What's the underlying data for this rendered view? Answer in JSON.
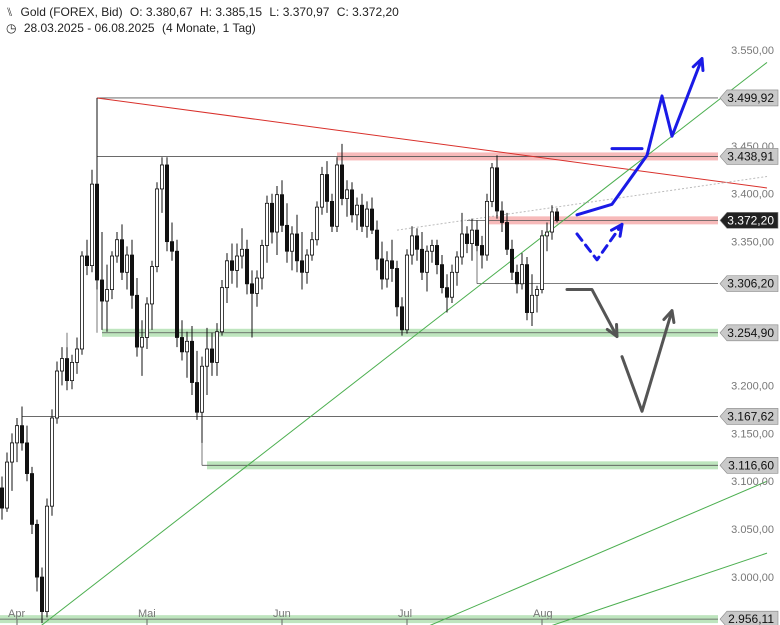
{
  "header": {
    "instrument": "Gold (FOREX, Bid)",
    "open": "O: 3.380,67",
    "high": "H: 3.385,15",
    "low": "L: 3.370,97",
    "close": "C: 3.372,20",
    "date_range": "28.03.2025 - 06.08.2025",
    "period": "(4 Monate, 1 Tag)"
  },
  "chart_data": {
    "type": "candlestick",
    "ylim": [
      2950,
      3575
    ],
    "grid": false,
    "y_ticks": [
      {
        "value": 3550,
        "label": "3.550,00"
      },
      {
        "value": 3450,
        "label": "3.450,00"
      },
      {
        "value": 3400,
        "label": "3.400,00"
      },
      {
        "value": 3350,
        "label": "3.350,00"
      },
      {
        "value": 3200,
        "label": "3.200,00"
      },
      {
        "value": 3150,
        "label": "3.150,00"
      },
      {
        "value": 3100,
        "label": "3.100,00"
      },
      {
        "value": 3050,
        "label": "3.050,00"
      },
      {
        "value": 3000,
        "label": "3.000,00"
      }
    ],
    "x_ticks": [
      {
        "index": 2,
        "label": "Apr"
      },
      {
        "index": 28,
        "label": "Mai"
      },
      {
        "index": 55,
        "label": "Jun"
      },
      {
        "index": 80,
        "label": "Jul"
      },
      {
        "index": 107,
        "label": "Aug"
      }
    ],
    "levels": [
      {
        "value": 3499.92,
        "label": "3.499,92",
        "from_index": 19,
        "color": "#555555",
        "zone": false
      },
      {
        "value": 3438.91,
        "label": "3.438,91",
        "from_index": 19,
        "color": "#555555",
        "zone": true,
        "zone_color": "#f4a3a3",
        "zone_from_index": 67
      },
      {
        "value": 3372.2,
        "label": "3.372,20",
        "from_index": 93,
        "color": "#555555",
        "zone": true,
        "zone_color": "#f4a3a3",
        "zone_from_index": 97,
        "current": true
      },
      {
        "value": 3306.2,
        "label": "3.306,20",
        "from_index": 95,
        "color": "#555555",
        "zone": false
      },
      {
        "value": 3254.9,
        "label": "3.254,90",
        "from_index": 20,
        "color": "#555555",
        "zone": true,
        "zone_color": "#a8dca8",
        "zone_from_index": 20
      },
      {
        "value": 3167.62,
        "label": "3.167,62",
        "from_index": 4,
        "color": "#555555",
        "zone": false
      },
      {
        "value": 3116.6,
        "label": "3.116,60",
        "from_index": 40,
        "color": "#555555",
        "zone": true,
        "zone_color": "#a8dca8",
        "zone_from_index": 41
      },
      {
        "value": 2956.11,
        "label": "2.956,11",
        "from_index": -1,
        "color": "#555555",
        "zone": true,
        "zone_color": "#a8dca8",
        "zone_from_index": -1
      }
    ],
    "trendlines": [
      {
        "name": "red-resistance",
        "color": "#d9302b",
        "points": [
          [
            19,
            3499.92
          ],
          [
            153,
            3406
          ]
        ]
      },
      {
        "name": "green-support",
        "color": "#4caf50",
        "points": [
          [
            7,
            2946
          ],
          [
            153,
            3537
          ]
        ]
      },
      {
        "name": "green-lower-1",
        "color": "#4caf50",
        "points": [
          [
            84,
            2946
          ],
          [
            153,
            3100
          ]
        ]
      },
      {
        "name": "green-lower-2",
        "color": "#4caf50",
        "points": [
          [
            108,
            2946
          ],
          [
            153,
            3025
          ]
        ]
      },
      {
        "name": "dotted-projection",
        "color": "#bbbbbb",
        "dashed": true,
        "points": [
          [
            79,
            3362
          ],
          [
            153,
            3418
          ]
        ]
      }
    ],
    "scenario_arrows": [
      {
        "name": "bullish-path",
        "color": "#1a1ae6",
        "dashed": false,
        "points": [
          [
            115,
            3378
          ],
          [
            122,
            3389
          ],
          [
            129,
            3440
          ],
          [
            132,
            3502
          ],
          [
            134,
            3460
          ],
          [
            140,
            3541
          ]
        ]
      },
      {
        "name": "bullish-path-base",
        "color": "#1a1ae6",
        "dashed": false,
        "points": [
          [
            122,
            3447
          ],
          [
            128,
            3447
          ]
        ]
      },
      {
        "name": "pullback-path",
        "color": "#1a1ae6",
        "dashed": true,
        "points": [
          [
            115,
            3358
          ],
          [
            119,
            3331
          ],
          [
            124,
            3368
          ]
        ]
      },
      {
        "name": "bearish-path",
        "color": "#555555",
        "dashed": false,
        "points": [
          [
            113,
            3300
          ],
          [
            118,
            3300
          ],
          [
            123,
            3251
          ]
        ]
      },
      {
        "name": "bearish-path-2",
        "color": "#555555",
        "dashed": false,
        "points": [
          [
            124,
            3230
          ],
          [
            128,
            3173
          ],
          [
            134,
            3278
          ]
        ]
      }
    ],
    "candles": [
      [
        3093,
        3105,
        3060,
        3072
      ],
      [
        3072,
        3130,
        3068,
        3120
      ],
      [
        3120,
        3150,
        3090,
        3140
      ],
      [
        3140,
        3166,
        3120,
        3158
      ],
      [
        3158,
        3178,
        3132,
        3140
      ],
      [
        3140,
        3158,
        3100,
        3108
      ],
      [
        3108,
        3115,
        3045,
        3055
      ],
      [
        3055,
        3060,
        2985,
        3000
      ],
      [
        3000,
        3010,
        2952,
        2964
      ],
      [
        2964,
        3082,
        2958,
        3074
      ],
      [
        3074,
        3175,
        3064,
        3166
      ],
      [
        3166,
        3225,
        3160,
        3215
      ],
      [
        3215,
        3240,
        3200,
        3228
      ],
      [
        3228,
        3240,
        3195,
        3205
      ],
      [
        3205,
        3232,
        3196,
        3224
      ],
      [
        3224,
        3250,
        3212,
        3238
      ],
      [
        3238,
        3340,
        3232,
        3335
      ],
      [
        3335,
        3352,
        3315,
        3325
      ],
      [
        3325,
        3425,
        3318,
        3410
      ],
      [
        3410,
        3500,
        3300,
        3310
      ],
      [
        3310,
        3360,
        3258,
        3288
      ],
      [
        3288,
        3326,
        3256,
        3300
      ],
      [
        3300,
        3340,
        3290,
        3335
      ],
      [
        3335,
        3360,
        3328,
        3352
      ],
      [
        3352,
        3368,
        3310,
        3318
      ],
      [
        3318,
        3345,
        3300,
        3336
      ],
      [
        3336,
        3352,
        3280,
        3294
      ],
      [
        3294,
        3312,
        3230,
        3240
      ],
      [
        3240,
        3268,
        3210,
        3250
      ],
      [
        3250,
        3292,
        3238,
        3285
      ],
      [
        3285,
        3330,
        3258,
        3324
      ],
      [
        3324,
        3412,
        3318,
        3405
      ],
      [
        3405,
        3438,
        3380,
        3430
      ],
      [
        3430,
        3438,
        3340,
        3350
      ],
      [
        3350,
        3370,
        3330,
        3340
      ],
      [
        3340,
        3352,
        3240,
        3250
      ],
      [
        3250,
        3268,
        3226,
        3235
      ],
      [
        3235,
        3256,
        3208,
        3246
      ],
      [
        3246,
        3262,
        3190,
        3203
      ],
      [
        3203,
        3236,
        3164,
        3172
      ],
      [
        3172,
        3230,
        3140,
        3220
      ],
      [
        3220,
        3260,
        3190,
        3238
      ],
      [
        3238,
        3255,
        3210,
        3224
      ],
      [
        3224,
        3265,
        3210,
        3256
      ],
      [
        3256,
        3310,
        3252,
        3302
      ],
      [
        3302,
        3338,
        3286,
        3330
      ],
      [
        3330,
        3348,
        3306,
        3320
      ],
      [
        3320,
        3348,
        3302,
        3335
      ],
      [
        3335,
        3364,
        3322,
        3342
      ],
      [
        3342,
        3352,
        3295,
        3306
      ],
      [
        3306,
        3320,
        3250,
        3296
      ],
      [
        3296,
        3320,
        3282,
        3312
      ],
      [
        3312,
        3352,
        3300,
        3346
      ],
      [
        3346,
        3398,
        3328,
        3390
      ],
      [
        3390,
        3400,
        3348,
        3360
      ],
      [
        3360,
        3408,
        3336,
        3399
      ],
      [
        3399,
        3414,
        3360,
        3367
      ],
      [
        3367,
        3390,
        3328,
        3340
      ],
      [
        3340,
        3366,
        3320,
        3358
      ],
      [
        3358,
        3378,
        3318,
        3330
      ],
      [
        3330,
        3360,
        3300,
        3318
      ],
      [
        3318,
        3342,
        3306,
        3336
      ],
      [
        3336,
        3360,
        3330,
        3352
      ],
      [
        3352,
        3392,
        3346,
        3386
      ],
      [
        3386,
        3428,
        3378,
        3420
      ],
      [
        3420,
        3434,
        3380,
        3392
      ],
      [
        3392,
        3400,
        3360,
        3366
      ],
      [
        3366,
        3438,
        3360,
        3430
      ],
      [
        3430,
        3452,
        3388,
        3395
      ],
      [
        3395,
        3414,
        3376,
        3404
      ],
      [
        3404,
        3412,
        3370,
        3378
      ],
      [
        3378,
        3396,
        3362,
        3388
      ],
      [
        3388,
        3400,
        3360,
        3366
      ],
      [
        3366,
        3392,
        3354,
        3384
      ],
      [
        3384,
        3396,
        3358,
        3362
      ],
      [
        3362,
        3372,
        3320,
        3332
      ],
      [
        3332,
        3350,
        3300,
        3311
      ],
      [
        3311,
        3340,
        3302,
        3330
      ],
      [
        3330,
        3352,
        3308,
        3322
      ],
      [
        3322,
        3330,
        3272,
        3282
      ],
      [
        3282,
        3292,
        3252,
        3258
      ],
      [
        3258,
        3342,
        3254,
        3336
      ],
      [
        3336,
        3366,
        3326,
        3356
      ],
      [
        3356,
        3364,
        3330,
        3342
      ],
      [
        3342,
        3360,
        3310,
        3318
      ],
      [
        3318,
        3346,
        3298,
        3340
      ],
      [
        3340,
        3352,
        3328,
        3346
      ],
      [
        3346,
        3352,
        3316,
        3326
      ],
      [
        3326,
        3336,
        3296,
        3302
      ],
      [
        3302,
        3316,
        3276,
        3292
      ],
      [
        3292,
        3326,
        3286,
        3318
      ],
      [
        3318,
        3340,
        3304,
        3334
      ],
      [
        3334,
        3380,
        3326,
        3358
      ],
      [
        3358,
        3366,
        3338,
        3348
      ],
      [
        3348,
        3374,
        3330,
        3362
      ],
      [
        3362,
        3372,
        3340,
        3346
      ],
      [
        3346,
        3356,
        3322,
        3336
      ],
      [
        3336,
        3400,
        3330,
        3392
      ],
      [
        3392,
        3432,
        3386,
        3427
      ],
      [
        3427,
        3440,
        3374,
        3382
      ],
      [
        3382,
        3392,
        3360,
        3370
      ],
      [
        3370,
        3380,
        3336,
        3342
      ],
      [
        3342,
        3352,
        3310,
        3318
      ],
      [
        3318,
        3326,
        3296,
        3306
      ],
      [
        3306,
        3338,
        3300,
        3326
      ],
      [
        3326,
        3334,
        3268,
        3276
      ],
      [
        3276,
        3316,
        3262,
        3294
      ],
      [
        3294,
        3304,
        3276,
        3300
      ],
      [
        3300,
        3362,
        3296,
        3356
      ],
      [
        3356,
        3370,
        3340,
        3360
      ],
      [
        3360,
        3388,
        3352,
        3381
      ],
      [
        3381,
        3385,
        3370,
        3372
      ]
    ]
  }
}
